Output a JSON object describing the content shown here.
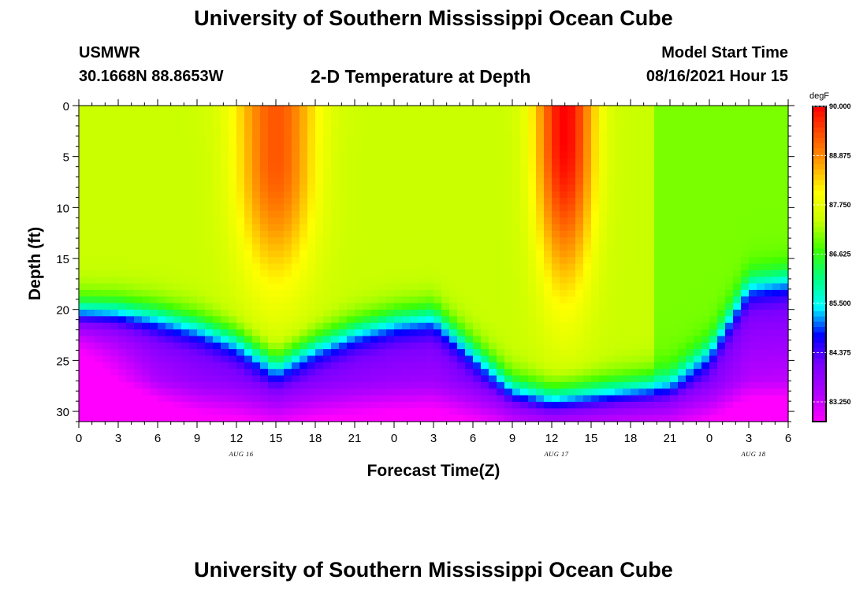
{
  "header": {
    "title": "University of Southern Mississippi Ocean Cube",
    "station": "USMWR",
    "coords": "30.1668N  88.8653W",
    "subtitle": "2-D Temperature at Depth",
    "model_start_label": "Model Start Time",
    "model_start_value": "08/16/2021 Hour 15"
  },
  "footer": {
    "title": "University of Southern Mississippi Ocean Cube"
  },
  "colors": {
    "scale": [
      "#ff00ff",
      "#b000ff",
      "#7a00ff",
      "#0000ff",
      "#00ffff",
      "#00ff80",
      "#40ff00",
      "#c8ff00",
      "#ffff00",
      "#ffa000",
      "#ff5000",
      "#ff0000"
    ]
  },
  "chart_data": {
    "type": "heatmap",
    "title": "2-D Temperature at Depth",
    "xlabel": "Forecast Time(Z)",
    "ylabel": "Depth (ft)",
    "x_tick_labels": [
      "0",
      "3",
      "6",
      "9",
      "12",
      "15",
      "18",
      "21",
      "0",
      "3",
      "6",
      "9",
      "12",
      "15",
      "18",
      "21",
      "0",
      "3",
      "6"
    ],
    "x_range_hours": [
      0,
      54
    ],
    "date_labels": [
      {
        "text": "AUG 16",
        "hour": 12
      },
      {
        "text": "AUG 17",
        "hour": 36
      },
      {
        "text": "AUG 18",
        "hour": 51
      }
    ],
    "y_ticks": [
      0,
      5,
      10,
      15,
      20,
      25,
      30
    ],
    "y_range": [
      0,
      31
    ],
    "y_inverted": true,
    "colorbar": {
      "unit": "degF",
      "min": 82.8,
      "max": 90.0,
      "labels": [
        "90.000",
        "88.875",
        "87.750",
        "86.625",
        "85.500",
        "84.375",
        "83.250"
      ],
      "label_values": [
        90.0,
        88.875,
        87.75,
        86.625,
        85.5,
        84.375,
        83.25
      ]
    },
    "field_model": {
      "description": "approximate temperature (degF) vs forecast hour and depth",
      "thermocline_hours": [
        0,
        3,
        6,
        9,
        12,
        15,
        18,
        21,
        24,
        27,
        30,
        33,
        36,
        39,
        42,
        45,
        48,
        51,
        54
      ],
      "thermocline_depth_ft": [
        20,
        20,
        20.5,
        21.5,
        23,
        25.5,
        23.5,
        22,
        21,
        20.5,
        24,
        27.5,
        28.5,
        28,
        27.5,
        27,
        24,
        17.5,
        17
      ],
      "warm_cores": [
        {
          "hour": 15,
          "depth": 5,
          "peak": 89.3,
          "width_hours": 3.0,
          "depth_extent": 18
        },
        {
          "hour": 37,
          "depth": 3,
          "peak": 90.0,
          "width_hours": 2.2,
          "depth_extent": 21
        }
      ],
      "surface_base": 87.4,
      "surface_base_late": 87.0,
      "bottom_min": 82.8,
      "bottom_base": 84.3
    }
  }
}
